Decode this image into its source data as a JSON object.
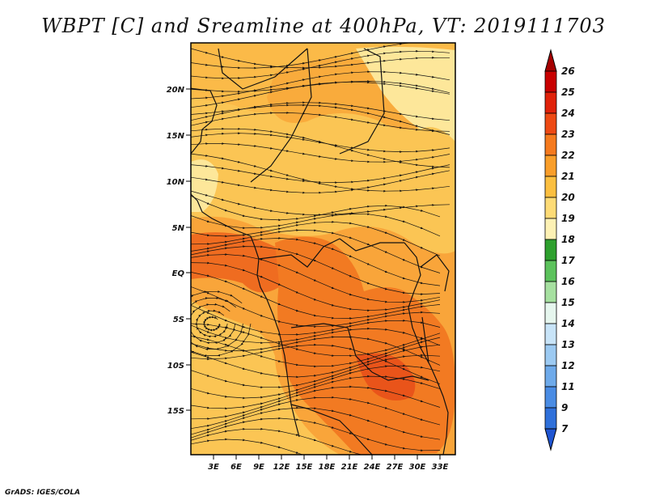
{
  "title": "WBPT [C] and Sreamline at 400hPa, VT: 2019111703",
  "footer": "GrADS: IGES/COLA",
  "lat_labels": [
    "20N",
    "15N",
    "10N",
    "5N",
    "EQ",
    "5S",
    "10S",
    "15S"
  ],
  "lon_labels": [
    "3E",
    "6E",
    "9E",
    "12E",
    "15E",
    "18E",
    "21E",
    "24E",
    "27E",
    "30E",
    "33E"
  ],
  "colorbar": {
    "levels": [
      "26",
      "25",
      "24",
      "23",
      "22",
      "21",
      "20",
      "19",
      "18",
      "17",
      "16",
      "15",
      "14",
      "13",
      "12",
      "11",
      "9",
      "7"
    ],
    "colors": [
      "#a50000",
      "#c80000",
      "#e0220a",
      "#ee4a14",
      "#f57a1e",
      "#f99e2a",
      "#fbbf40",
      "#fddb76",
      "#fdf1b4",
      "#2ea02e",
      "#5cc25c",
      "#a6e0a0",
      "#e6f6ee",
      "#c8e4f8",
      "#9ccaf2",
      "#6eaaea",
      "#4a8ce4",
      "#2f70da",
      "#1f55d2"
    ]
  },
  "field": {
    "colors": {
      "light": "#fde79a",
      "mid": "#fbc554",
      "orange": "#f9a53a",
      "deep": "#f27a22",
      "red": "#ec5a18"
    }
  }
}
